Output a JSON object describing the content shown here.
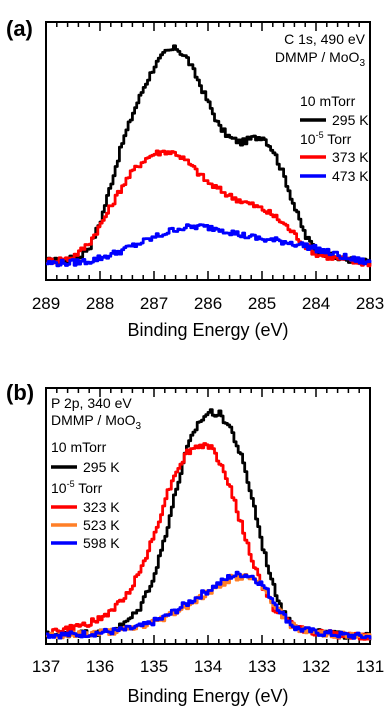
{
  "chart_data": [
    {
      "type": "line",
      "panel_label": "(a)",
      "info": [
        "C 1s, 490 eV",
        "DMMP / MoO3"
      ],
      "xlabel": "Binding Energy (eV)",
      "xlim": [
        289,
        283
      ],
      "x_ticks": [
        289,
        288,
        287,
        286,
        285,
        284,
        283
      ],
      "x_tick_labels": [
        "289",
        "288",
        "287",
        "286",
        "285",
        "284",
        "283"
      ],
      "y_axis": "no tick labels (arbitrary intensity)",
      "legend_placement": "right",
      "legend_groups": [
        {
          "header": "10 mTorr",
          "entries": [
            0
          ]
        },
        {
          "header": "10-5 Torr",
          "entries": [
            1,
            2
          ]
        }
      ],
      "series": [
        {
          "name": "295 K",
          "color": "#000000",
          "x": [
            289,
            288.7,
            288.4,
            288.2,
            288.0,
            287.8,
            287.6,
            287.4,
            287.2,
            287.0,
            286.8,
            286.6,
            286.4,
            286.2,
            286.0,
            285.8,
            285.6,
            285.4,
            285.2,
            285.0,
            284.8,
            284.6,
            284.4,
            284.2,
            284.0,
            283.6,
            283.2,
            283.0
          ],
          "y": [
            0.01,
            0.01,
            0.03,
            0.08,
            0.2,
            0.38,
            0.56,
            0.7,
            0.82,
            0.92,
            0.98,
            1.0,
            0.95,
            0.85,
            0.74,
            0.63,
            0.58,
            0.56,
            0.58,
            0.59,
            0.52,
            0.4,
            0.25,
            0.12,
            0.06,
            0.02,
            0.01,
            0.0
          ]
        },
        {
          "name": "373 K",
          "color": "#ff0000",
          "x": [
            289,
            288.6,
            288.4,
            288.2,
            288.0,
            287.8,
            287.6,
            287.4,
            287.2,
            287.0,
            286.8,
            286.6,
            286.4,
            286.2,
            286.0,
            285.8,
            285.6,
            285.4,
            285.2,
            285.0,
            284.8,
            284.6,
            284.4,
            284.2,
            284.0,
            283.6,
            283.2,
            283.0
          ],
          "y": [
            0.01,
            0.02,
            0.05,
            0.1,
            0.18,
            0.27,
            0.36,
            0.43,
            0.48,
            0.51,
            0.52,
            0.51,
            0.47,
            0.42,
            0.37,
            0.34,
            0.31,
            0.29,
            0.27,
            0.25,
            0.22,
            0.18,
            0.13,
            0.08,
            0.04,
            0.02,
            0.0,
            0.0
          ]
        },
        {
          "name": "473 K",
          "color": "#0000ff",
          "x": [
            289,
            288.6,
            288.2,
            287.8,
            287.4,
            287.0,
            286.6,
            286.2,
            285.8,
            285.4,
            285.0,
            284.6,
            284.2,
            283.8,
            283.4,
            283.0
          ],
          "y": [
            0.0,
            0.0,
            0.01,
            0.04,
            0.08,
            0.12,
            0.16,
            0.17,
            0.16,
            0.13,
            0.11,
            0.1,
            0.08,
            0.05,
            0.02,
            0.0
          ]
        }
      ]
    },
    {
      "type": "line",
      "panel_label": "(b)",
      "info": [
        "P 2p, 340 eV",
        "DMMP / MoO3"
      ],
      "xlabel": "Binding Energy (eV)",
      "xlim": [
        137,
        131
      ],
      "x_ticks": [
        137,
        136,
        135,
        134,
        133,
        132,
        131
      ],
      "x_tick_labels": [
        "137",
        "136",
        "135",
        "134",
        "133",
        "132",
        "131"
      ],
      "y_axis": "no tick labels (arbitrary intensity)",
      "legend_placement": "top-left",
      "legend_groups": [
        {
          "header": "10 mTorr",
          "entries": [
            0
          ]
        },
        {
          "header": "10-5 Torr",
          "entries": [
            1,
            2,
            3
          ]
        }
      ],
      "series": [
        {
          "name": "295 K",
          "color": "#000000",
          "x": [
            137.0,
            136.0,
            135.6,
            135.3,
            135.0,
            134.8,
            134.6,
            134.4,
            134.2,
            134.0,
            133.8,
            133.6,
            133.4,
            133.2,
            133.0,
            132.8,
            132.6,
            132.4,
            132.2,
            132.0,
            131.6,
            131.0
          ],
          "y": [
            0.01,
            0.02,
            0.05,
            0.12,
            0.28,
            0.46,
            0.66,
            0.84,
            0.95,
            1.0,
            0.99,
            0.93,
            0.8,
            0.62,
            0.4,
            0.22,
            0.1,
            0.05,
            0.03,
            0.02,
            0.01,
            0.0
          ]
        },
        {
          "name": "323 K",
          "color": "#ff0000",
          "x": [
            137.0,
            136.5,
            136.0,
            135.6,
            135.3,
            135.0,
            134.8,
            134.6,
            134.4,
            134.2,
            134.0,
            133.8,
            133.6,
            133.4,
            133.2,
            133.0,
            132.8,
            132.6,
            132.4,
            132.2,
            132.0,
            131.6,
            131.0
          ],
          "y": [
            0.02,
            0.04,
            0.08,
            0.16,
            0.28,
            0.46,
            0.62,
            0.74,
            0.82,
            0.85,
            0.85,
            0.78,
            0.66,
            0.5,
            0.34,
            0.22,
            0.13,
            0.08,
            0.05,
            0.03,
            0.02,
            0.01,
            0.0
          ]
        },
        {
          "name": "523 K",
          "color": "#ff7f27",
          "x": [
            137.0,
            136.5,
            136.0,
            135.6,
            135.2,
            134.8,
            134.4,
            134.0,
            133.8,
            133.6,
            133.4,
            133.2,
            133.0,
            132.8,
            132.6,
            132.4,
            132.0,
            131.6,
            131.0
          ],
          "y": [
            0.01,
            0.01,
            0.02,
            0.03,
            0.05,
            0.09,
            0.14,
            0.2,
            0.23,
            0.26,
            0.27,
            0.26,
            0.22,
            0.15,
            0.08,
            0.04,
            0.02,
            0.01,
            0.0
          ]
        },
        {
          "name": "598 K",
          "color": "#0000ff",
          "x": [
            137.0,
            136.5,
            136.0,
            135.6,
            135.2,
            134.8,
            134.4,
            134.0,
            133.8,
            133.6,
            133.4,
            133.2,
            133.0,
            132.8,
            132.6,
            132.4,
            132.0,
            131.6,
            131.0
          ],
          "y": [
            0.01,
            0.01,
            0.02,
            0.03,
            0.05,
            0.09,
            0.15,
            0.21,
            0.24,
            0.27,
            0.28,
            0.27,
            0.23,
            0.16,
            0.09,
            0.04,
            0.02,
            0.01,
            0.0
          ]
        }
      ]
    }
  ]
}
